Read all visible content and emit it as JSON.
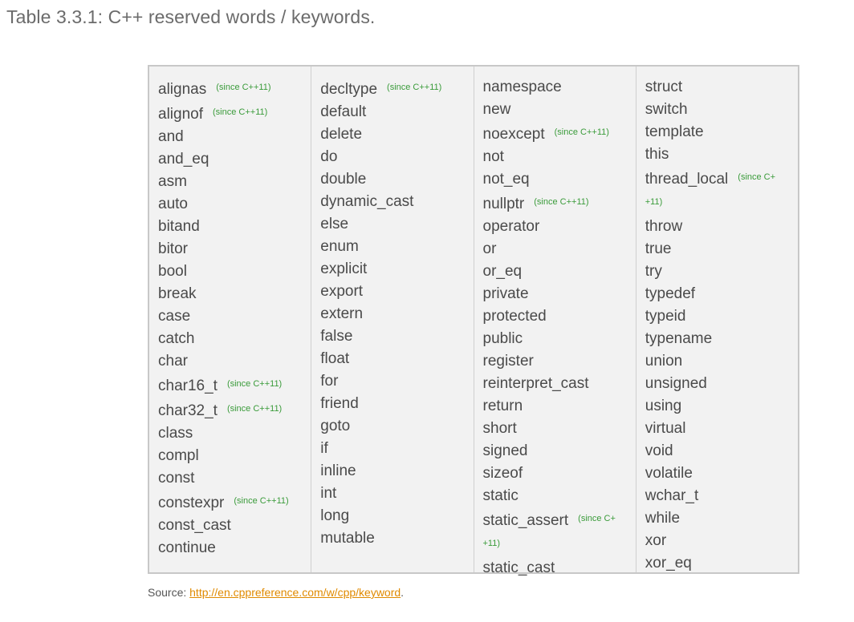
{
  "caption": "Table 3.3.1: C++ reserved words / keywords.",
  "columns": [
    [
      {
        "kw": "alignas",
        "note": "(since C++11)"
      },
      {
        "kw": "alignof",
        "note": "(since C++11)"
      },
      {
        "kw": "and"
      },
      {
        "kw": "and_eq"
      },
      {
        "kw": "asm"
      },
      {
        "kw": "auto"
      },
      {
        "kw": "bitand"
      },
      {
        "kw": "bitor"
      },
      {
        "kw": "bool"
      },
      {
        "kw": "break"
      },
      {
        "kw": "case"
      },
      {
        "kw": "catch"
      },
      {
        "kw": "char"
      },
      {
        "kw": "char16_t",
        "note": "(since C++11)"
      },
      {
        "kw": "char32_t",
        "note": "(since C++11)"
      },
      {
        "kw": "class"
      },
      {
        "kw": "compl"
      },
      {
        "kw": "const"
      },
      {
        "kw": "constexpr",
        "note": "(since C++11)"
      },
      {
        "kw": "const_cast"
      },
      {
        "kw": "continue"
      }
    ],
    [
      {
        "kw": "decltype",
        "note": "(since C++11)"
      },
      {
        "kw": "default"
      },
      {
        "kw": "delete"
      },
      {
        "kw": "do"
      },
      {
        "kw": "double"
      },
      {
        "kw": "dynamic_cast"
      },
      {
        "kw": "else"
      },
      {
        "kw": "enum"
      },
      {
        "kw": "explicit"
      },
      {
        "kw": "export"
      },
      {
        "kw": "extern"
      },
      {
        "kw": "false"
      },
      {
        "kw": "float"
      },
      {
        "kw": "for"
      },
      {
        "kw": "friend"
      },
      {
        "kw": "goto"
      },
      {
        "kw": "if"
      },
      {
        "kw": "inline"
      },
      {
        "kw": "int"
      },
      {
        "kw": "long"
      },
      {
        "kw": "mutable"
      }
    ],
    [
      {
        "kw": "namespace"
      },
      {
        "kw": "new"
      },
      {
        "kw": "noexcept",
        "note": "(since C++11)"
      },
      {
        "kw": "not"
      },
      {
        "kw": "not_eq"
      },
      {
        "kw": "nullptr",
        "note": "(since C++11)"
      },
      {
        "kw": "operator"
      },
      {
        "kw": "or"
      },
      {
        "kw": "or_eq"
      },
      {
        "kw": "private"
      },
      {
        "kw": "protected"
      },
      {
        "kw": "public"
      },
      {
        "kw": "register"
      },
      {
        "kw": "reinterpret_cast"
      },
      {
        "kw": "return"
      },
      {
        "kw": "short"
      },
      {
        "kw": "signed"
      },
      {
        "kw": "sizeof"
      },
      {
        "kw": "static"
      },
      {
        "kw": "static_assert",
        "note": "(since C++11)",
        "wrap": true
      },
      {
        "kw": "static_cast"
      }
    ],
    [
      {
        "kw": "struct"
      },
      {
        "kw": "switch"
      },
      {
        "kw": "template"
      },
      {
        "kw": "this"
      },
      {
        "kw": "thread_local",
        "note": "(since C++11)",
        "wrap": true
      },
      {
        "kw": "throw"
      },
      {
        "kw": "true"
      },
      {
        "kw": "try"
      },
      {
        "kw": "typedef"
      },
      {
        "kw": "typeid"
      },
      {
        "kw": "typename"
      },
      {
        "kw": "union"
      },
      {
        "kw": "unsigned"
      },
      {
        "kw": "using"
      },
      {
        "kw": "virtual"
      },
      {
        "kw": "void"
      },
      {
        "kw": "volatile"
      },
      {
        "kw": "wchar_t"
      },
      {
        "kw": "while"
      },
      {
        "kw": "xor"
      },
      {
        "kw": "xor_eq"
      }
    ]
  ],
  "source": {
    "prefix": "Source: ",
    "link_text": "http://en.cppreference.com/w/cpp/keyword",
    "suffix": "."
  },
  "colors": {
    "note_green": "#3a9b3a",
    "link_orange": "#e08a00"
  }
}
